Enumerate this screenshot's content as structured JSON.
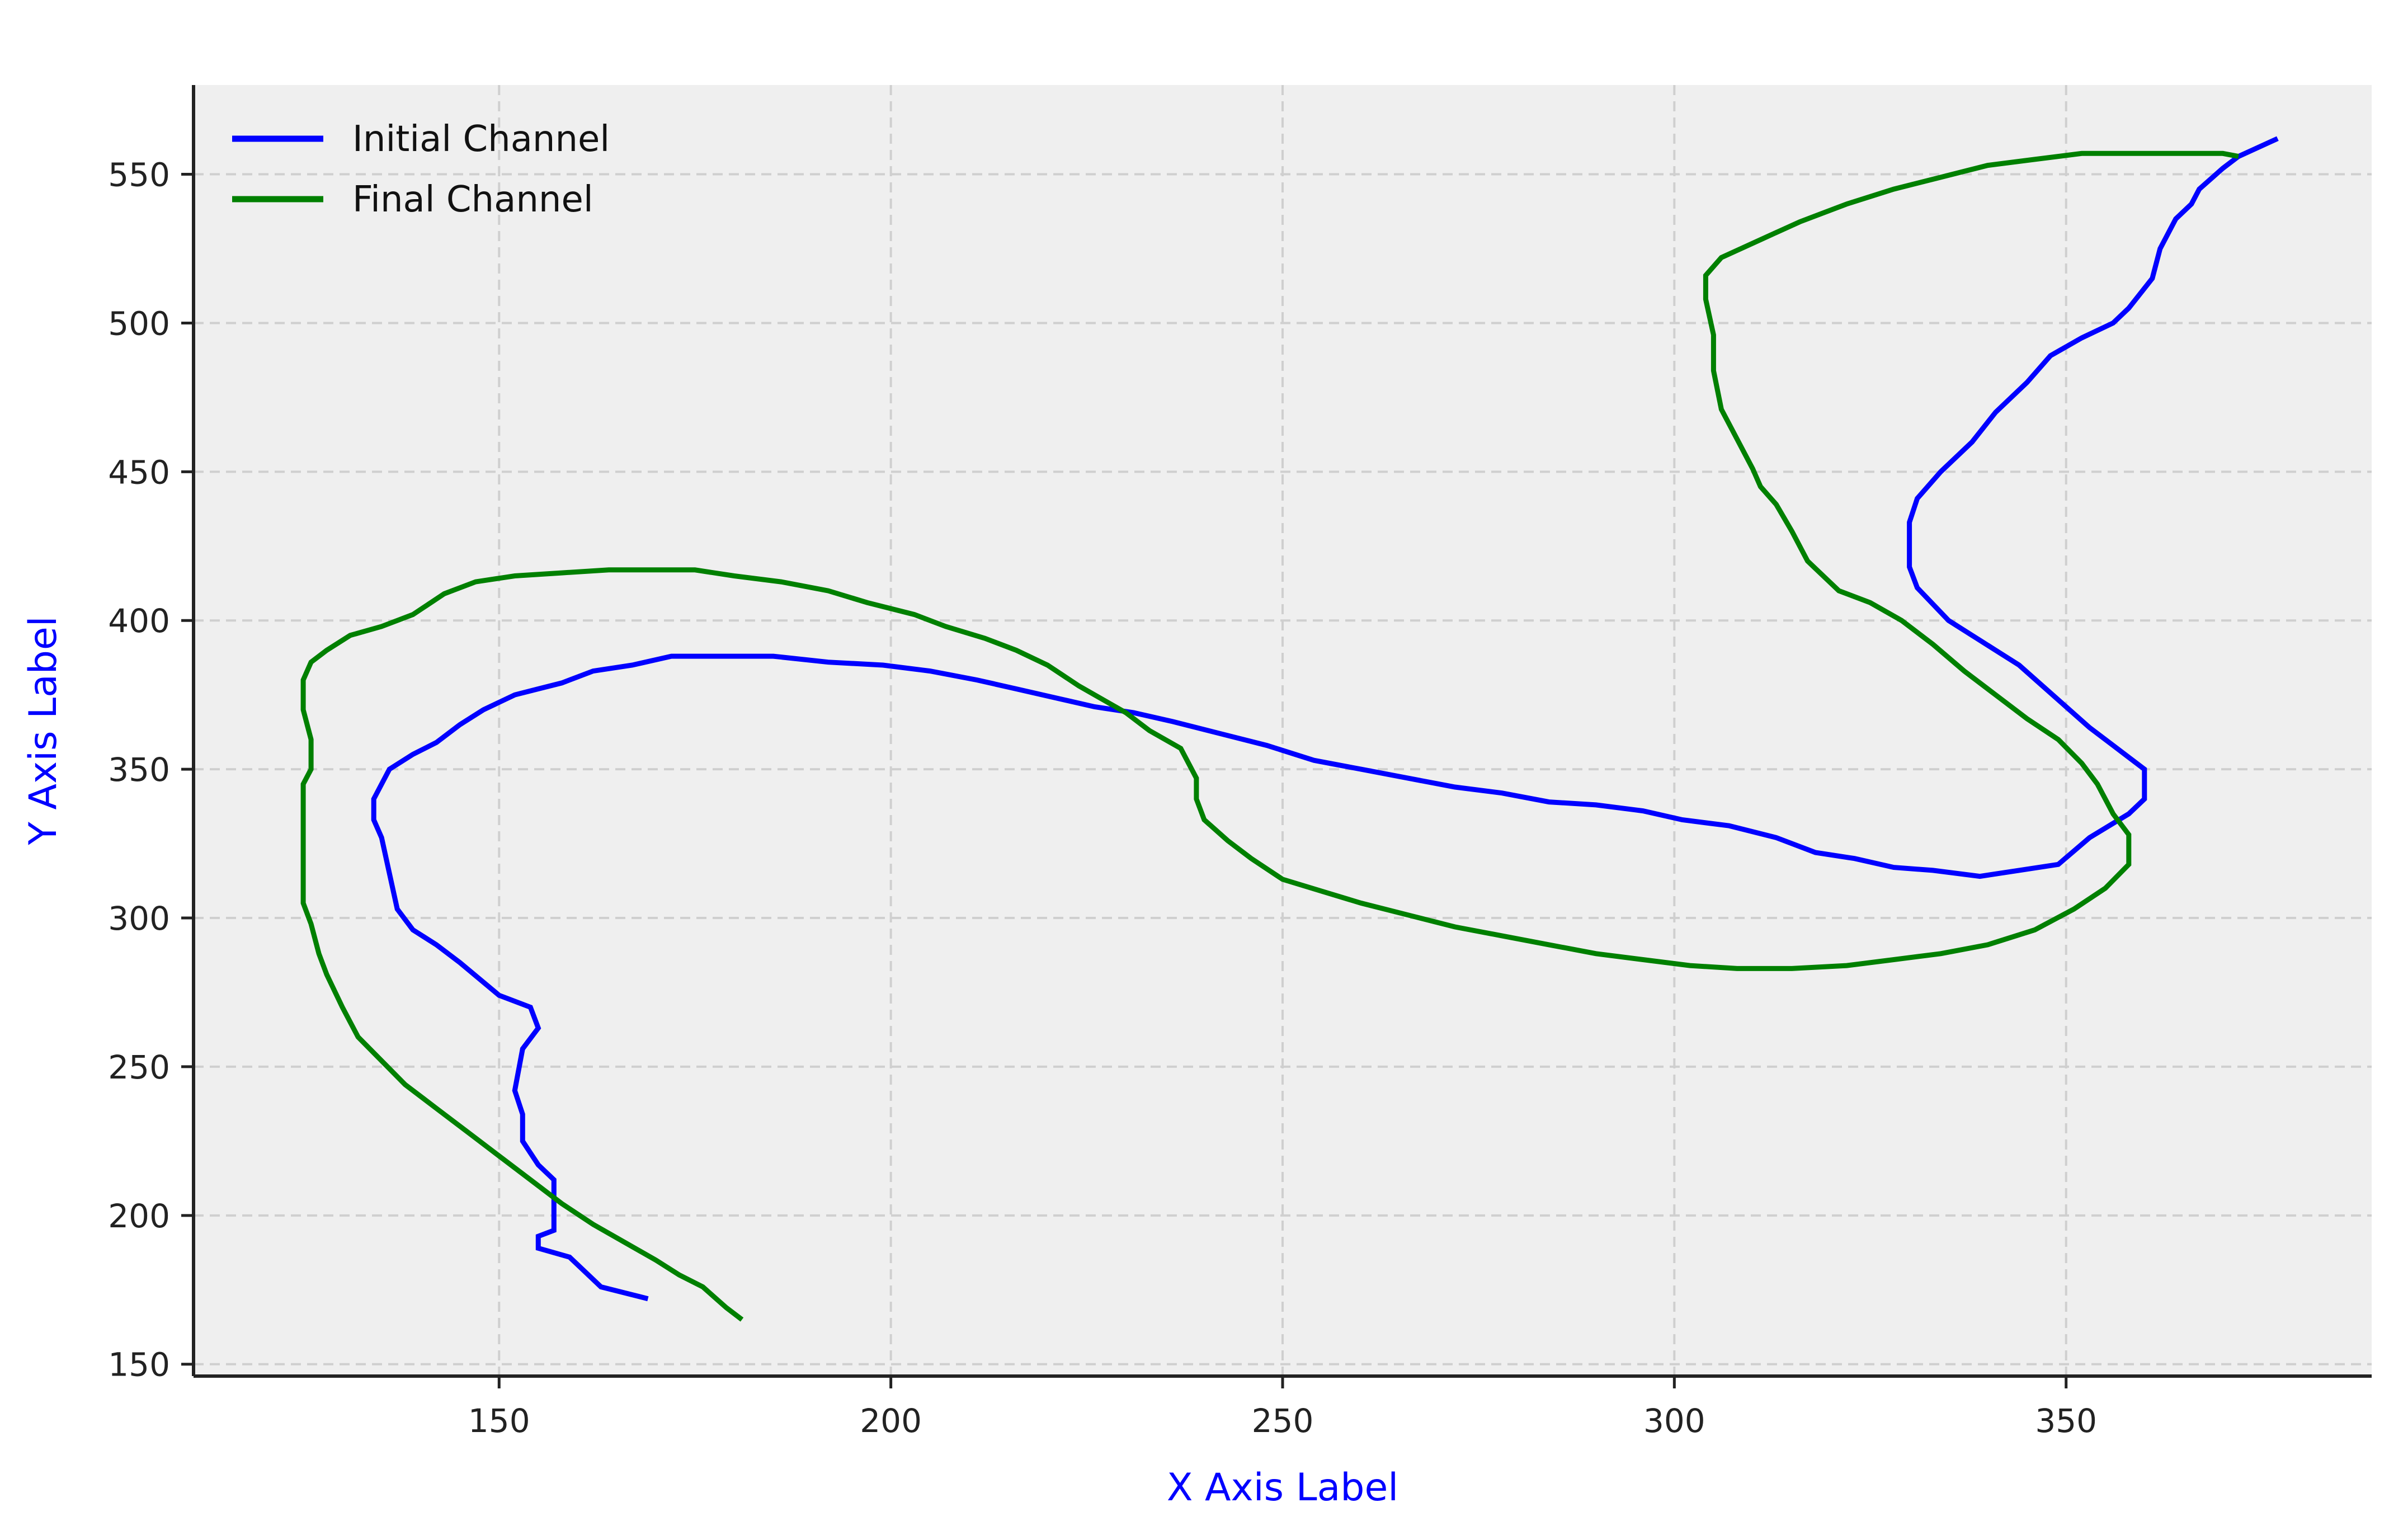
{
  "chart_data": {
    "type": "line",
    "title": "",
    "xlabel": "X Axis Label",
    "ylabel": "Y Axis Label",
    "xlim": [
      111,
      389
    ],
    "ylim": [
      146,
      580
    ],
    "xticks": [
      150,
      200,
      250,
      300,
      350
    ],
    "yticks": [
      150,
      200,
      250,
      300,
      350,
      400,
      450,
      500,
      550
    ],
    "grid": true,
    "legend_position": "top-left",
    "series": [
      {
        "name": "Initial Channel",
        "color": "#0000ff",
        "points": [
          [
            169,
            172
          ],
          [
            166,
            174
          ],
          [
            163,
            176
          ],
          [
            159,
            186
          ],
          [
            155,
            189
          ],
          [
            155,
            193
          ],
          [
            157,
            195
          ],
          [
            157,
            205
          ],
          [
            157,
            212
          ],
          [
            155,
            217
          ],
          [
            153,
            225
          ],
          [
            153,
            234
          ],
          [
            152,
            242
          ],
          [
            153,
            256
          ],
          [
            155,
            263
          ],
          [
            154,
            270
          ],
          [
            150,
            274
          ],
          [
            145,
            285
          ],
          [
            142,
            291
          ],
          [
            139,
            296
          ],
          [
            137,
            303
          ],
          [
            136,
            315
          ],
          [
            135,
            327
          ],
          [
            134,
            333
          ],
          [
            134,
            340
          ],
          [
            136,
            350
          ],
          [
            139,
            355
          ],
          [
            142,
            359
          ],
          [
            145,
            365
          ],
          [
            148,
            370
          ],
          [
            152,
            375
          ],
          [
            155,
            377
          ],
          [
            158,
            379
          ],
          [
            162,
            383
          ],
          [
            167,
            385
          ],
          [
            172,
            388
          ],
          [
            178,
            388
          ],
          [
            185,
            388
          ],
          [
            192,
            386
          ],
          [
            199,
            385
          ],
          [
            205,
            383
          ],
          [
            211,
            380
          ],
          [
            216,
            377
          ],
          [
            221,
            374
          ],
          [
            226,
            371
          ],
          [
            231,
            369
          ],
          [
            236,
            366
          ],
          [
            242,
            362
          ],
          [
            248,
            358
          ],
          [
            254,
            353
          ],
          [
            260,
            350
          ],
          [
            266,
            347
          ],
          [
            272,
            344
          ],
          [
            278,
            342
          ],
          [
            284,
            339
          ],
          [
            290,
            338
          ],
          [
            296,
            336
          ],
          [
            301,
            333
          ],
          [
            307,
            331
          ],
          [
            313,
            327
          ],
          [
            318,
            322
          ],
          [
            323,
            320
          ],
          [
            328,
            317
          ],
          [
            333,
            316
          ],
          [
            339,
            314
          ],
          [
            344,
            316
          ],
          [
            349,
            318
          ],
          [
            353,
            327
          ],
          [
            358,
            335
          ],
          [
            360,
            340
          ],
          [
            360,
            350
          ],
          [
            358,
            354
          ],
          [
            356,
            358
          ],
          [
            353,
            364
          ],
          [
            350,
            371
          ],
          [
            347,
            378
          ],
          [
            344,
            385
          ],
          [
            341,
            390
          ],
          [
            338,
            395
          ],
          [
            335,
            400
          ],
          [
            331,
            411
          ],
          [
            330,
            418
          ],
          [
            330,
            433
          ],
          [
            331,
            441
          ],
          [
            334,
            450
          ],
          [
            338,
            460
          ],
          [
            341,
            470
          ],
          [
            345,
            480
          ],
          [
            348,
            489
          ],
          [
            352,
            495
          ],
          [
            356,
            500
          ],
          [
            358,
            505
          ],
          [
            361,
            515
          ],
          [
            362,
            525
          ],
          [
            364,
            535
          ],
          [
            366,
            540
          ],
          [
            367,
            545
          ],
          [
            370,
            552
          ],
          [
            372,
            556
          ],
          [
            377,
            562
          ]
        ]
      },
      {
        "name": "Final Channel",
        "color": "#008000",
        "points": [
          [
            181,
            165
          ],
          [
            179,
            169
          ],
          [
            176,
            176
          ],
          [
            173,
            180
          ],
          [
            170,
            185
          ],
          [
            166,
            191
          ],
          [
            162,
            197
          ],
          [
            158,
            204
          ],
          [
            154,
            212
          ],
          [
            150,
            220
          ],
          [
            146,
            228
          ],
          [
            142,
            236
          ],
          [
            138,
            244
          ],
          [
            135,
            252
          ],
          [
            132,
            260
          ],
          [
            130,
            270
          ],
          [
            128,
            281
          ],
          [
            127,
            288
          ],
          [
            126,
            298
          ],
          [
            125,
            305
          ],
          [
            125,
            315
          ],
          [
            125,
            330
          ],
          [
            125,
            345
          ],
          [
            126,
            350
          ],
          [
            126,
            360
          ],
          [
            125,
            370
          ],
          [
            125,
            380
          ],
          [
            126,
            386
          ],
          [
            128,
            390
          ],
          [
            131,
            395
          ],
          [
            135,
            398
          ],
          [
            139,
            402
          ],
          [
            143,
            409
          ],
          [
            147,
            413
          ],
          [
            152,
            415
          ],
          [
            158,
            416
          ],
          [
            164,
            417
          ],
          [
            170,
            417
          ],
          [
            175,
            417
          ],
          [
            180,
            415
          ],
          [
            186,
            413
          ],
          [
            192,
            410
          ],
          [
            197,
            406
          ],
          [
            203,
            402
          ],
          [
            207,
            398
          ],
          [
            212,
            394
          ],
          [
            216,
            390
          ],
          [
            220,
            385
          ],
          [
            224,
            378
          ],
          [
            228,
            372
          ],
          [
            230,
            369
          ],
          [
            233,
            363
          ],
          [
            237,
            357
          ],
          [
            239,
            347
          ],
          [
            239,
            340
          ],
          [
            240,
            333
          ],
          [
            243,
            326
          ],
          [
            246,
            320
          ],
          [
            250,
            313
          ],
          [
            255,
            309
          ],
          [
            260,
            305
          ],
          [
            266,
            301
          ],
          [
            272,
            297
          ],
          [
            278,
            294
          ],
          [
            284,
            291
          ],
          [
            290,
            288
          ],
          [
            296,
            286
          ],
          [
            302,
            284
          ],
          [
            308,
            283
          ],
          [
            315,
            283
          ],
          [
            322,
            284
          ],
          [
            328,
            286
          ],
          [
            334,
            288
          ],
          [
            340,
            291
          ],
          [
            346,
            296
          ],
          [
            351,
            303
          ],
          [
            355,
            310
          ],
          [
            358,
            318
          ],
          [
            358,
            328
          ],
          [
            356,
            335
          ],
          [
            354,
            345
          ],
          [
            352,
            352
          ],
          [
            349,
            360
          ],
          [
            345,
            367
          ],
          [
            341,
            375
          ],
          [
            337,
            383
          ],
          [
            333,
            392
          ],
          [
            329,
            400
          ],
          [
            325,
            406
          ],
          [
            321,
            410
          ],
          [
            317,
            420
          ],
          [
            315,
            430
          ],
          [
            313,
            439
          ],
          [
            311,
            445
          ],
          [
            310,
            451
          ],
          [
            308,
            461
          ],
          [
            306,
            471
          ],
          [
            305,
            484
          ],
          [
            305,
            496
          ],
          [
            304,
            508
          ],
          [
            304,
            516
          ],
          [
            306,
            522
          ],
          [
            311,
            528
          ],
          [
            316,
            534
          ],
          [
            322,
            540
          ],
          [
            328,
            545
          ],
          [
            334,
            549
          ],
          [
            340,
            553
          ],
          [
            346,
            555
          ],
          [
            352,
            557
          ],
          [
            358,
            557
          ],
          [
            364,
            557
          ],
          [
            370,
            557
          ],
          [
            372,
            556
          ]
        ]
      }
    ]
  }
}
